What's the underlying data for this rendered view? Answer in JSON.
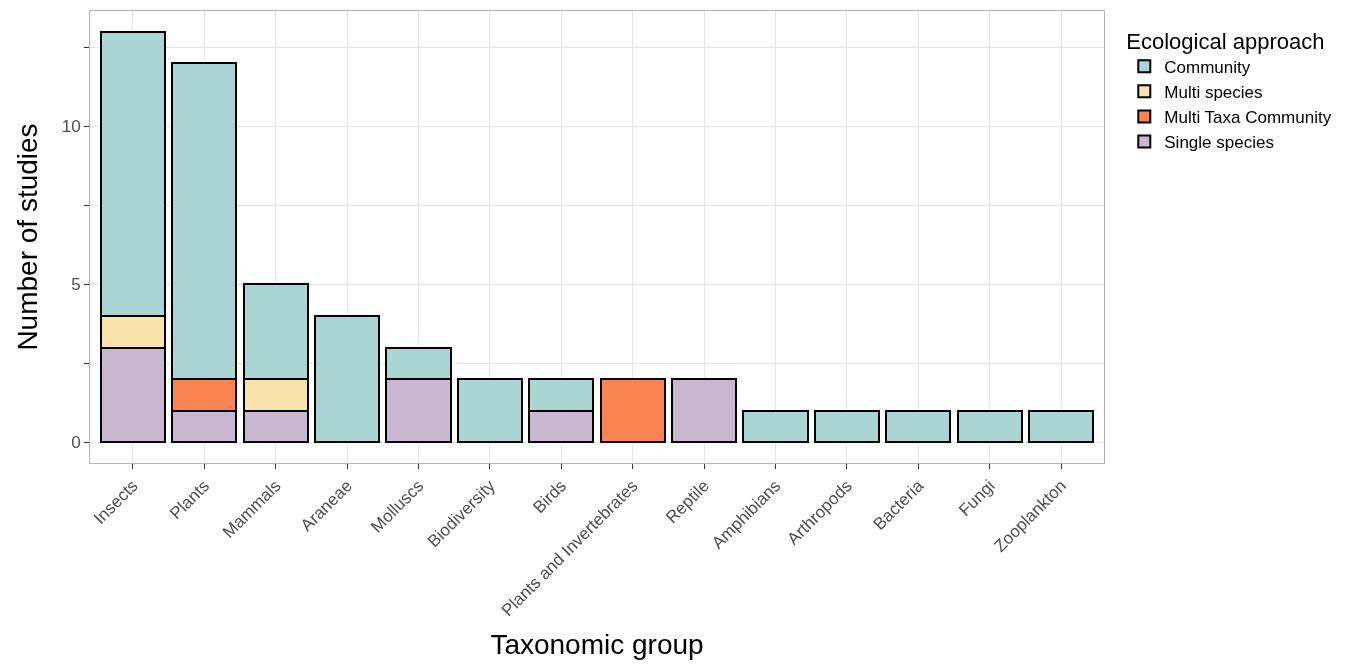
{
  "chart_data": {
    "type": "bar",
    "stacked": true,
    "xlabel": "Taxonomic group",
    "ylabel": "Number of studies",
    "legend_title": "Ecological approach",
    "legend": "right",
    "grid": true,
    "categories": [
      "Insects",
      "Plants",
      "Mammals",
      "Araneae",
      "Molluscs",
      "Biodiversity",
      "Birds",
      "Plants and Invertebrates",
      "Reptile",
      "Amphibians",
      "Arthropods",
      "Bacteria",
      "Fungi",
      "Zooplankton"
    ],
    "series": [
      {
        "name": "Single species",
        "color": "#c9b7d2",
        "values": [
          3,
          1,
          1,
          null,
          2,
          null,
          1,
          null,
          2,
          null,
          null,
          null,
          null,
          null
        ]
      },
      {
        "name": "Multi Taxa Community",
        "color": "#fb8351",
        "values": [
          null,
          1,
          null,
          null,
          null,
          null,
          null,
          2,
          null,
          null,
          null,
          null,
          null,
          null
        ]
      },
      {
        "name": "Multi species",
        "color": "#f9e3ad",
        "values": [
          1,
          null,
          1,
          null,
          null,
          null,
          null,
          null,
          null,
          null,
          null,
          null,
          null,
          null
        ]
      },
      {
        "name": "Community",
        "color": "#abd5d3",
        "values": [
          9,
          10,
          3,
          4,
          1,
          2,
          1,
          null,
          null,
          1,
          1,
          1,
          1,
          1
        ]
      }
    ],
    "ylim": [
      -0.65,
      13.65
    ],
    "yticks": [
      0,
      {
        "value": 2.5,
        "label": null
      },
      5,
      {
        "value": 7.5,
        "label": null
      },
      10,
      {
        "value": 12.5,
        "label": null
      }
    ]
  }
}
